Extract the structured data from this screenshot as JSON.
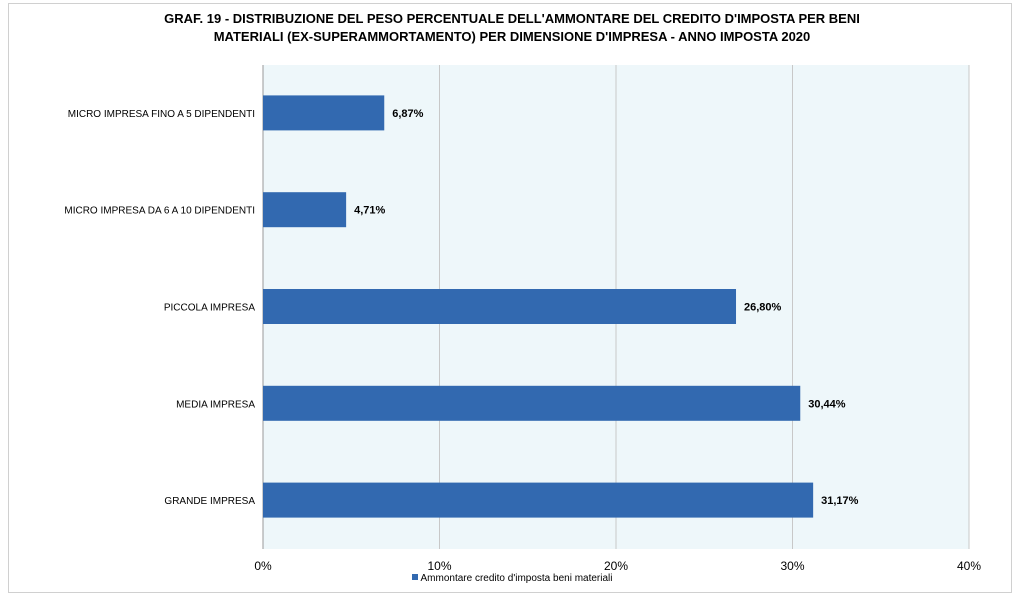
{
  "chart_data": {
    "type": "bar",
    "orientation": "horizontal",
    "title_lines": [
      "GRAF. 19  - DISTRIBUZIONE DEL PESO PERCENTUALE DELL'AMMONTARE DEL CREDITO D'IMPOSTA PER BENI",
      "MATERIALI (EX-SUPERAMMORTAMENTO) PER DIMENSIONE D'IMPRESA - ANNO IMPOSTA 2020"
    ],
    "categories": [
      "MICRO IMPRESA FINO A 5 DIPENDENTI",
      "MICRO IMPRESA DA 6 A 10 DIPENDENTI",
      "PICCOLA IMPRESA",
      "MEDIA IMPRESA",
      "GRANDE IMPRESA"
    ],
    "values": [
      6.87,
      4.71,
      26.8,
      30.44,
      31.17
    ],
    "data_labels": [
      "6,87%",
      "4,71%",
      "26,80%",
      "30,44%",
      "31,17%"
    ],
    "xlim": [
      0,
      40
    ],
    "x_ticks": [
      0,
      10,
      20,
      30,
      40
    ],
    "x_tick_labels": [
      "0%",
      "10%",
      "20%",
      "30%",
      "40%"
    ],
    "series_name": "Ammontare credito d'imposta beni materiali",
    "legend_position": "bottom",
    "grid": true,
    "colors": {
      "bar": "#3269b0",
      "plot_background": "#eef7fa",
      "gridline": "#c8c8c8"
    }
  }
}
